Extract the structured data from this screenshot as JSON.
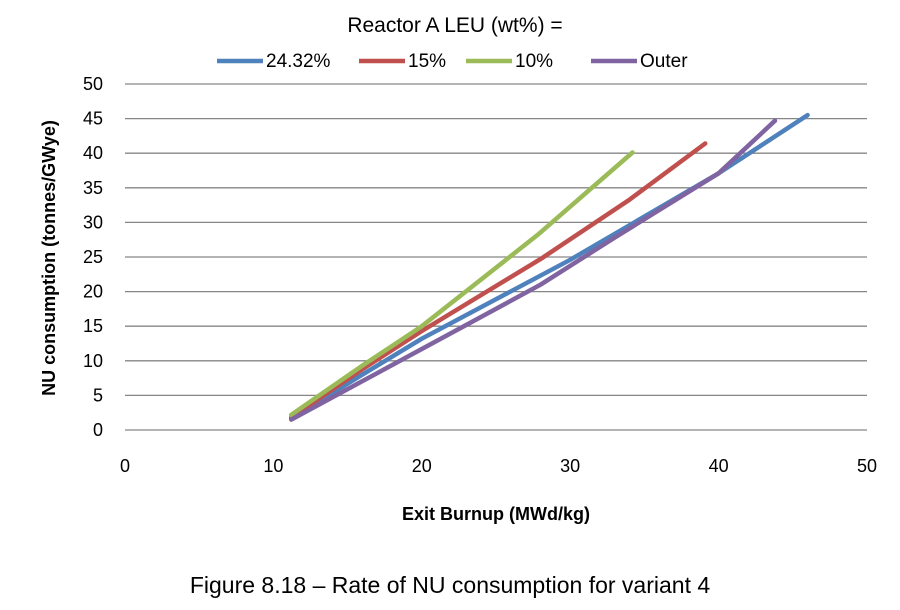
{
  "figure": {
    "caption": "Figure 8.18 – Rate of NU consumption for variant 4"
  },
  "chart_data": {
    "type": "line",
    "legend_title": "Reactor A LEU (wt%) =",
    "legend_position": "top",
    "xlabel": "Exit Burnup (MWd/kg)",
    "ylabel": "NU consumption (tonnes/GWye)",
    "xlim": [
      0,
      50
    ],
    "ylim": [
      0,
      50
    ],
    "x_ticks": [
      0,
      10,
      20,
      30,
      40,
      50
    ],
    "y_ticks": [
      0,
      5,
      10,
      15,
      20,
      25,
      30,
      35,
      40,
      45,
      50
    ],
    "grid": "horizontal",
    "series": [
      {
        "name": "24.32%",
        "color": "#4f81bd",
        "points": [
          [
            11.2,
            1.7
          ],
          [
            16,
            8
          ],
          [
            20,
            13.2
          ],
          [
            30,
            24.6
          ],
          [
            40,
            37.1
          ],
          [
            46,
            45.5
          ]
        ]
      },
      {
        "name": "15%",
        "color": "#c0504d",
        "points": [
          [
            11.2,
            1.8
          ],
          [
            16,
            8.8
          ],
          [
            20,
            14.3
          ],
          [
            28,
            24.7
          ],
          [
            34,
            33.3
          ],
          [
            39.1,
            41.4
          ]
        ]
      },
      {
        "name": "10%",
        "color": "#9bbb59",
        "points": [
          [
            11.2,
            2.2
          ],
          [
            16,
            9.3
          ],
          [
            20,
            15
          ],
          [
            27.8,
            28.2
          ],
          [
            34.2,
            40.1
          ]
        ]
      },
      {
        "name": "Outer",
        "color": "#8064a2",
        "points": [
          [
            11.2,
            1.5
          ],
          [
            20,
            11.7
          ],
          [
            28,
            21
          ],
          [
            33,
            27.8
          ],
          [
            40,
            37.1
          ],
          [
            43.8,
            44.7
          ]
        ]
      }
    ]
  }
}
